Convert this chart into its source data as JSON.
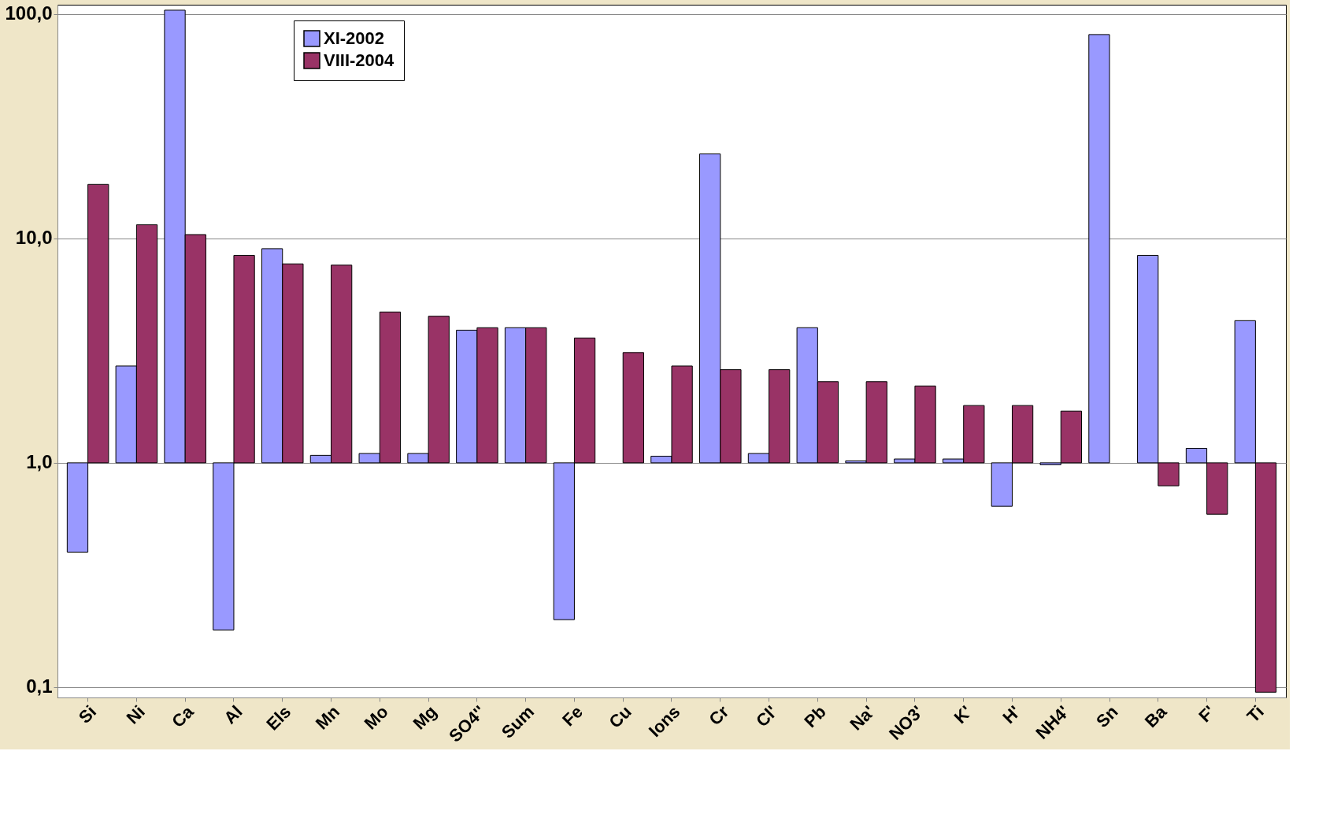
{
  "chart_data": {
    "type": "bar",
    "log": "y",
    "grid": "y",
    "legend": "top left",
    "categories": [
      "Si",
      "Ni",
      "Ca",
      "Al",
      "Els",
      "Mn",
      "Mo",
      "Mg",
      "SO4''",
      "Sum",
      "Fe",
      "Cu",
      "Ions",
      "Cr",
      "Cl'",
      "Pb",
      "Na'",
      "NO3'",
      "K'",
      "H'",
      "NH4'",
      "Sn",
      "Ba",
      "F'",
      "Ti"
    ],
    "ylim": [
      0.09,
      110
    ],
    "yticks": [
      {
        "value": 0.1,
        "label": "0,1"
      },
      {
        "value": 1,
        "label": "1,0"
      },
      {
        "value": 10,
        "label": "10,0"
      },
      {
        "value": 100,
        "label": "100,0"
      }
    ],
    "series": [
      {
        "name": "XI-2002",
        "color": "#9999ff",
        "base": [
          1,
          1,
          1,
          1,
          1,
          1,
          1,
          1,
          1,
          1,
          1,
          null,
          1,
          1,
          1,
          1,
          1,
          1,
          1,
          1,
          1,
          1,
          1,
          1,
          1
        ],
        "values": [
          -0.6,
          1.7,
          103,
          -0.82,
          8.0,
          0.08,
          0.1,
          0.1,
          2.9,
          3.0,
          -0.8,
          null,
          0.07,
          22.8,
          0.1,
          3.0,
          0.02,
          0.04,
          0.04,
          -0.36,
          -0.02,
          80,
          7.4,
          0.16,
          3.3
        ]
      },
      {
        "name": "VIII-2004",
        "color": "#993366",
        "base": [
          1,
          1,
          1,
          1,
          1,
          1,
          1,
          1,
          1,
          1,
          1,
          1,
          1,
          1,
          1,
          1,
          1,
          1,
          1,
          1,
          1,
          null,
          1,
          1,
          1
        ],
        "values": [
          16.4,
          10.5,
          9.4,
          7.4,
          6.7,
          6.6,
          3.7,
          3.5,
          3.0,
          3.0,
          2.6,
          2.1,
          1.7,
          1.6,
          1.6,
          1.3,
          1.3,
          1.2,
          0.8,
          0.8,
          0.7,
          null,
          -0.21,
          -0.41,
          -0.905
        ]
      }
    ]
  }
}
